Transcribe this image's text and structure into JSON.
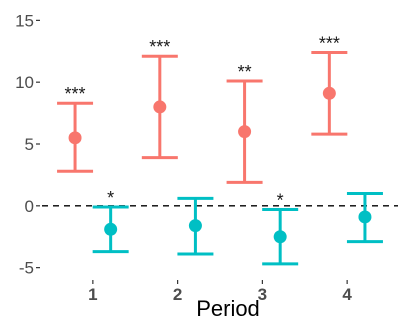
{
  "chart_data": {
    "type": "errorbar",
    "xlabel": "Period",
    "ylabel": "",
    "x_ticks": [
      "1",
      "2",
      "3",
      "4"
    ],
    "ylim": [
      -6,
      16
    ],
    "y_ticks": [
      -5,
      0,
      5,
      10,
      15
    ],
    "grid": false,
    "reference_line": {
      "y": 0,
      "style": "dashed"
    },
    "series": [
      {
        "color": "#F8766D",
        "points": [
          {
            "x": 1,
            "y": 5.5,
            "lower": 2.8,
            "upper": 8.3,
            "label": "***"
          },
          {
            "x": 2,
            "y": 8.0,
            "lower": 3.9,
            "upper": 12.1,
            "label": "***"
          },
          {
            "x": 3,
            "y": 6.0,
            "lower": 1.9,
            "upper": 10.1,
            "label": "**"
          },
          {
            "x": 4,
            "y": 9.1,
            "lower": 5.8,
            "upper": 12.4,
            "label": "***"
          }
        ]
      },
      {
        "color": "#00BFC4",
        "points": [
          {
            "x": 1,
            "y": -1.9,
            "lower": -3.7,
            "upper": -0.1,
            "label": "*"
          },
          {
            "x": 2,
            "y": -1.6,
            "lower": -3.9,
            "upper": 0.6,
            "label": ""
          },
          {
            "x": 3,
            "y": -2.5,
            "lower": -4.7,
            "upper": -0.3,
            "label": "*"
          },
          {
            "x": 4,
            "y": -0.9,
            "lower": -2.9,
            "upper": 1.0,
            "label": ""
          }
        ]
      }
    ]
  }
}
